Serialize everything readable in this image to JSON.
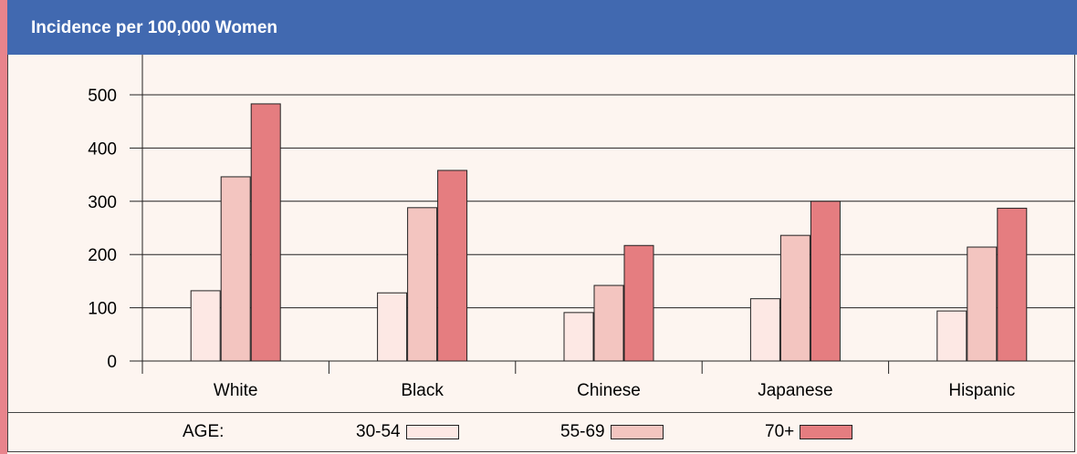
{
  "header": {
    "title": "Incidence per 100,000 Women"
  },
  "legend": {
    "age_label": "AGE:",
    "items": [
      {
        "label": "30-54",
        "color": "#fde8e4"
      },
      {
        "label": "55-69",
        "color": "#f3c5c0"
      },
      {
        "label": "70+",
        "color": "#e57d80"
      }
    ]
  },
  "chart_data": {
    "type": "bar",
    "title": "Incidence per 100,000 Women",
    "categories": [
      "White",
      "Black",
      "Chinese",
      "Japanese",
      "Hispanic"
    ],
    "series": [
      {
        "name": "30-54",
        "values": [
          132,
          128,
          91,
          117,
          94
        ]
      },
      {
        "name": "55-69",
        "values": [
          346,
          288,
          142,
          236,
          214
        ]
      },
      {
        "name": "70+",
        "values": [
          483,
          358,
          217,
          300,
          287
        ]
      }
    ],
    "yticks": [
      0,
      100,
      200,
      300,
      400,
      500
    ],
    "ylim": [
      0,
      500
    ],
    "grid": true,
    "legend_placement": "bottom"
  }
}
